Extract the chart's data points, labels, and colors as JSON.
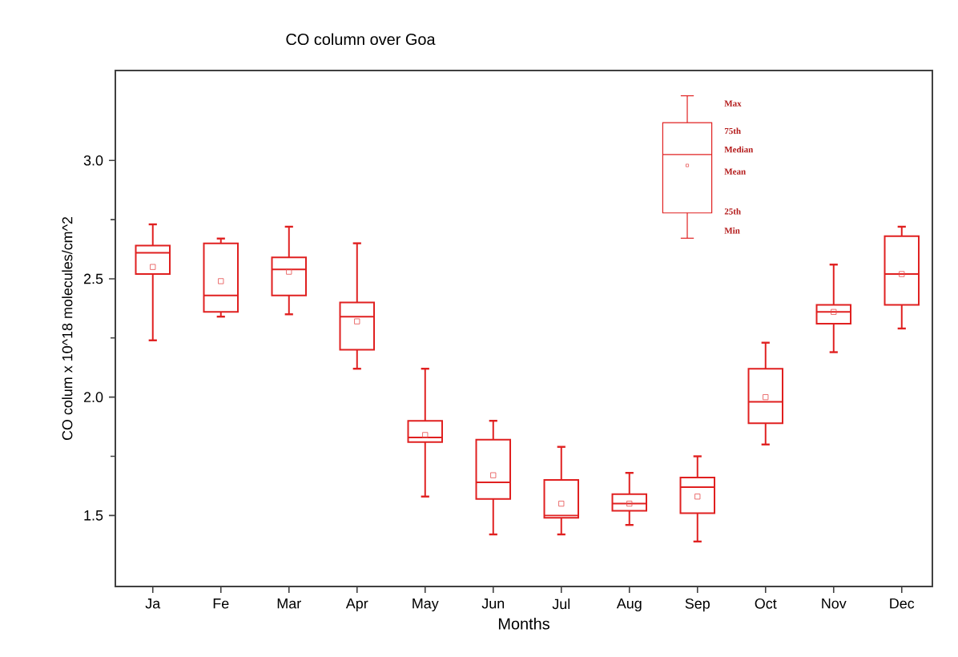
{
  "chart_data": {
    "type": "box",
    "title": "CO column over Goa",
    "xlabel": "Months",
    "ylabel": "CO colum x 10^18 molecules/cm^2",
    "categories": [
      "Ja",
      "Fe",
      "Mar",
      "Apr",
      "May",
      "Jun",
      "Jul",
      "Aug",
      "Sep",
      "Oct",
      "Nov",
      "Dec"
    ],
    "color": "#e02020",
    "boxes": [
      {
        "low": 2.24,
        "q1": 2.52,
        "median": 2.61,
        "q3": 2.64,
        "high": 2.73,
        "mean": 2.55
      },
      {
        "low": 2.34,
        "q1": 2.36,
        "median": 2.43,
        "q3": 2.65,
        "high": 2.67,
        "mean": 2.49
      },
      {
        "low": 2.35,
        "q1": 2.43,
        "median": 2.54,
        "q3": 2.59,
        "high": 2.72,
        "mean": 2.53
      },
      {
        "low": 2.12,
        "q1": 2.2,
        "median": 2.34,
        "q3": 2.4,
        "high": 2.65,
        "mean": 2.32
      },
      {
        "low": 1.58,
        "q1": 1.81,
        "median": 1.83,
        "q3": 1.9,
        "high": 2.12,
        "mean": 1.84
      },
      {
        "low": 1.42,
        "q1": 1.57,
        "median": 1.64,
        "q3": 1.82,
        "high": 1.9,
        "mean": 1.67
      },
      {
        "low": 1.42,
        "q1": 1.49,
        "median": 1.5,
        "q3": 1.65,
        "high": 1.79,
        "mean": 1.55
      },
      {
        "low": 1.46,
        "q1": 1.52,
        "median": 1.55,
        "q3": 1.59,
        "high": 1.68,
        "mean": 1.55
      },
      {
        "low": 1.39,
        "q1": 1.51,
        "median": 1.62,
        "q3": 1.66,
        "high": 1.75,
        "mean": 1.58
      },
      {
        "low": 1.8,
        "q1": 1.89,
        "median": 1.98,
        "q3": 2.12,
        "high": 2.23,
        "mean": 2.0
      },
      {
        "low": 2.19,
        "q1": 2.31,
        "median": 2.36,
        "q3": 2.39,
        "high": 2.56,
        "mean": 2.36
      },
      {
        "low": 2.29,
        "q1": 2.39,
        "median": 2.52,
        "q3": 2.68,
        "high": 2.72,
        "mean": 2.52
      }
    ],
    "ylim": [
      1.2,
      3.38
    ],
    "yticks": [
      {
        "value": 1.5,
        "label": "1.5"
      },
      {
        "value": 2.0,
        "label": "2.0"
      },
      {
        "value": 2.5,
        "label": "2.5"
      },
      {
        "value": 3.0,
        "label": "3.0"
      }
    ],
    "annotations": [
      "Max",
      "75th",
      "Median",
      "Mean",
      "25th",
      "Min"
    ],
    "grid": false
  }
}
